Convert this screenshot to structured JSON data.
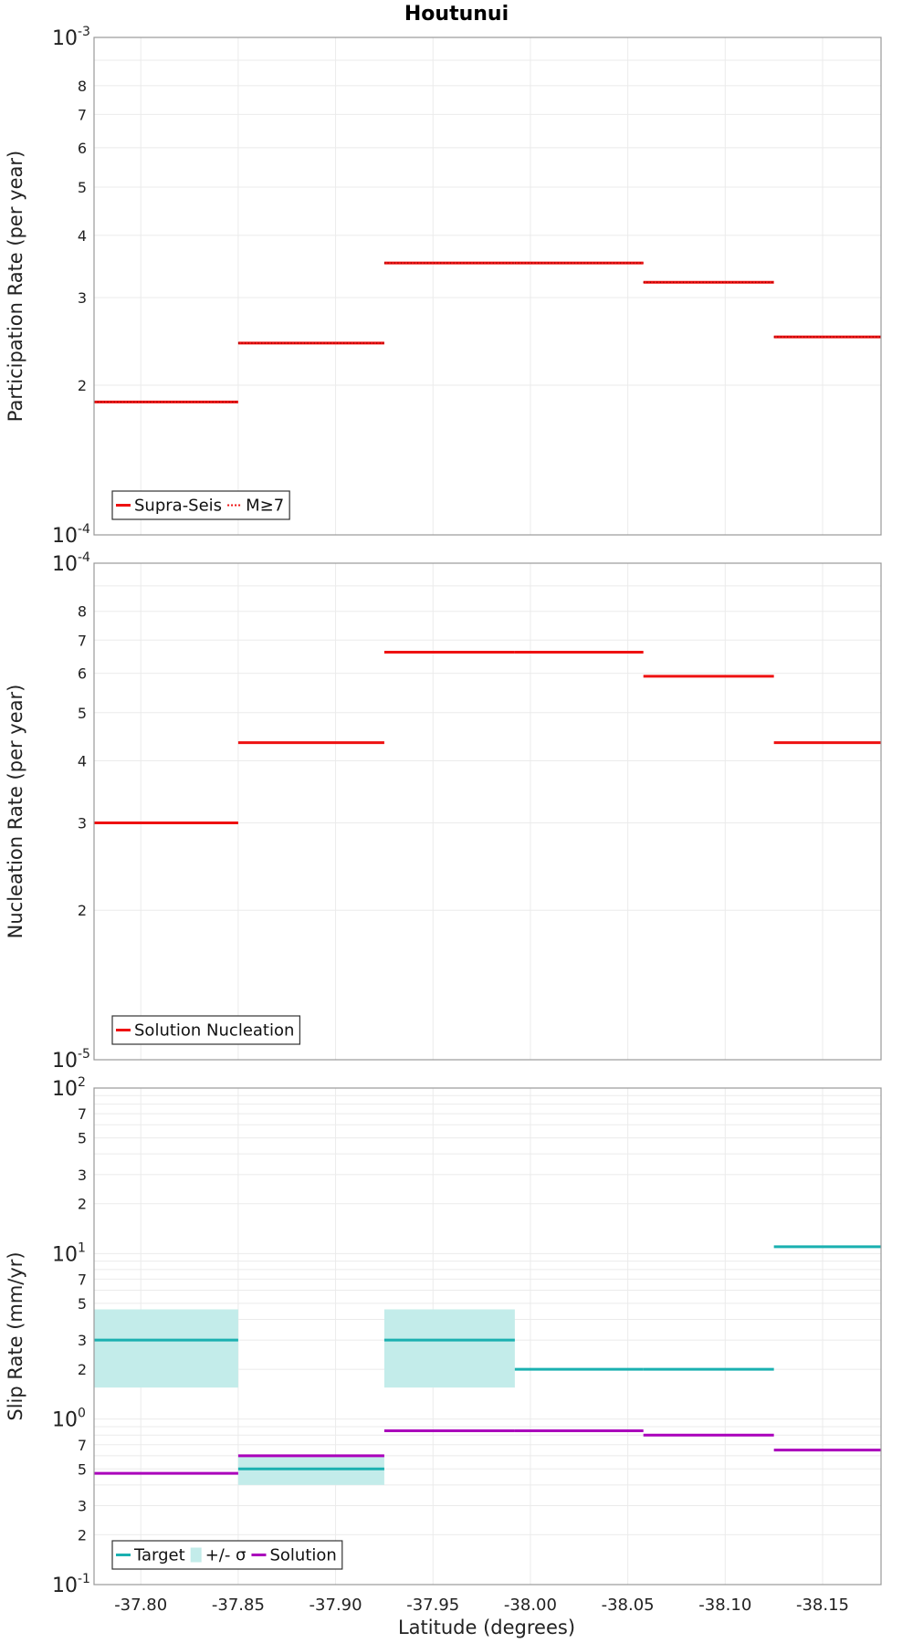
{
  "chart_data": [
    {
      "type": "line",
      "title": "Houtunui",
      "ylabel": "Participation Rate (per year)",
      "yscale": "log",
      "ylim": [
        0.0001,
        0.001
      ],
      "y_major_labels": [
        {
          "value": 0.001,
          "base": "10",
          "exp": "-3"
        },
        {
          "value": 0.0001,
          "base": "10",
          "exp": "-4"
        }
      ],
      "y_minor_labels": [
        {
          "value": 0.0008,
          "label": "8"
        },
        {
          "value": 0.0007,
          "label": "7"
        },
        {
          "value": 0.0006,
          "label": "6"
        },
        {
          "value": 0.0005,
          "label": "5"
        },
        {
          "value": 0.0004,
          "label": "4"
        },
        {
          "value": 0.0003,
          "label": "3"
        },
        {
          "value": 0.0002,
          "label": "2"
        }
      ],
      "legend": {
        "placement": "bottom-left",
        "entries": [
          {
            "label": "Supra-Seis",
            "style": "solid",
            "color": "#ee1111"
          },
          {
            "label": "M≥7",
            "style": "dotted",
            "color": "#ee1111"
          }
        ]
      },
      "series": [
        {
          "name": "Supra-Seis",
          "color": "#ee1111",
          "segments": [
            {
              "x0": -37.776,
              "x1": -37.85,
              "y": 0.000185
            },
            {
              "x0": -37.85,
              "x1": -37.925,
              "y": 0.000243
            },
            {
              "x0": -37.925,
              "x1": -37.992,
              "y": 0.000352
            },
            {
              "x0": -37.992,
              "x1": -38.058,
              "y": 0.000352
            },
            {
              "x0": -38.058,
              "x1": -38.125,
              "y": 0.000322
            },
            {
              "x0": -38.125,
              "x1": -38.18,
              "y": 0.00025
            }
          ]
        },
        {
          "name": "M≥7",
          "color": "#ee1111",
          "dotted": true,
          "segments": [
            {
              "x0": -37.776,
              "x1": -37.85,
              "y": 0.000185
            },
            {
              "x0": -37.85,
              "x1": -37.925,
              "y": 0.000243
            },
            {
              "x0": -37.925,
              "x1": -37.992,
              "y": 0.000352
            },
            {
              "x0": -37.992,
              "x1": -38.058,
              "y": 0.000352
            },
            {
              "x0": -38.058,
              "x1": -38.125,
              "y": 0.000322
            },
            {
              "x0": -38.125,
              "x1": -38.18,
              "y": 0.00025
            }
          ]
        }
      ]
    },
    {
      "type": "line",
      "ylabel": "Nucleation Rate (per year)",
      "yscale": "log",
      "ylim": [
        1e-05,
        0.0001
      ],
      "y_major_labels": [
        {
          "value": 0.0001,
          "base": "10",
          "exp": "-4"
        },
        {
          "value": 1e-05,
          "base": "10",
          "exp": "-5"
        }
      ],
      "y_minor_labels": [
        {
          "value": 8e-05,
          "label": "8"
        },
        {
          "value": 7e-05,
          "label": "7"
        },
        {
          "value": 6e-05,
          "label": "6"
        },
        {
          "value": 5e-05,
          "label": "5"
        },
        {
          "value": 4e-05,
          "label": "4"
        },
        {
          "value": 3e-05,
          "label": "3"
        },
        {
          "value": 2e-05,
          "label": "2"
        }
      ],
      "legend": {
        "placement": "bottom-left",
        "entries": [
          {
            "label": "Solution Nucleation",
            "style": "solid",
            "color": "#ee1111"
          }
        ]
      },
      "series": [
        {
          "name": "Solution Nucleation",
          "color": "#ee1111",
          "segments": [
            {
              "x0": -37.776,
              "x1": -37.85,
              "y": 3e-05
            },
            {
              "x0": -37.85,
              "x1": -37.925,
              "y": 4.35e-05
            },
            {
              "x0": -37.925,
              "x1": -37.992,
              "y": 6.62e-05
            },
            {
              "x0": -37.992,
              "x1": -38.058,
              "y": 6.62e-05
            },
            {
              "x0": -38.058,
              "x1": -38.125,
              "y": 5.92e-05
            },
            {
              "x0": -38.125,
              "x1": -38.18,
              "y": 4.35e-05
            }
          ]
        }
      ]
    },
    {
      "type": "line",
      "ylabel": "Slip Rate (mm/yr)",
      "xlabel": "Latitude (degrees)",
      "yscale": "log",
      "ylim": [
        0.1,
        100
      ],
      "xlim": [
        -37.776,
        -38.18
      ],
      "x_ticks": [
        {
          "value": -37.8,
          "label": "-37.80"
        },
        {
          "value": -37.85,
          "label": "-37.85"
        },
        {
          "value": -37.9,
          "label": "-37.90"
        },
        {
          "value": -37.95,
          "label": "-37.95"
        },
        {
          "value": -38.0,
          "label": "-38.00"
        },
        {
          "value": -38.05,
          "label": "-38.05"
        },
        {
          "value": -38.1,
          "label": "-38.10"
        },
        {
          "value": -38.15,
          "label": "-38.15"
        }
      ],
      "y_major_labels": [
        {
          "value": 100,
          "base": "10",
          "exp": "2"
        },
        {
          "value": 10,
          "base": "10",
          "exp": "1"
        },
        {
          "value": 1,
          "base": "10",
          "exp": "0"
        },
        {
          "value": 0.1,
          "base": "10",
          "exp": "-1"
        }
      ],
      "y_minor_labels": [
        {
          "value": 70,
          "label": "7"
        },
        {
          "value": 50,
          "label": "5"
        },
        {
          "value": 30,
          "label": "3"
        },
        {
          "value": 20,
          "label": "2"
        },
        {
          "value": 7,
          "label": "7"
        },
        {
          "value": 5,
          "label": "5"
        },
        {
          "value": 3,
          "label": "3"
        },
        {
          "value": 2,
          "label": "2"
        },
        {
          "value": 0.7,
          "label": "7"
        },
        {
          "value": 0.5,
          "label": "5"
        },
        {
          "value": 0.3,
          "label": "3"
        },
        {
          "value": 0.2,
          "label": "2"
        }
      ],
      "legend": {
        "placement": "bottom-left",
        "entries": [
          {
            "label": "Target",
            "style": "solid",
            "color": "#1ab0b0"
          },
          {
            "label": "+/- σ",
            "style": "box",
            "color": "#c3ecea"
          },
          {
            "label": "Solution",
            "style": "solid",
            "color": "#aa00bb"
          }
        ]
      },
      "bands": [
        {
          "name": "+/- σ",
          "color": "#c3ecea",
          "x0": -37.776,
          "x1": -37.85,
          "y_low": 1.55,
          "y_high": 4.6
        },
        {
          "name": "+/- σ",
          "color": "#c3ecea",
          "x0": -37.85,
          "x1": -37.925,
          "y_low": 0.4,
          "y_high": 0.6
        },
        {
          "name": "+/- σ",
          "color": "#c3ecea",
          "x0": -37.925,
          "x1": -37.992,
          "y_low": 1.55,
          "y_high": 4.6
        }
      ],
      "series": [
        {
          "name": "Target",
          "color": "#1ab0b0",
          "segments": [
            {
              "x0": -37.776,
              "x1": -37.85,
              "y": 3.0
            },
            {
              "x0": -37.85,
              "x1": -37.925,
              "y": 0.5
            },
            {
              "x0": -37.925,
              "x1": -37.992,
              "y": 3.0
            },
            {
              "x0": -37.992,
              "x1": -38.058,
              "y": 2.0
            },
            {
              "x0": -38.058,
              "x1": -38.125,
              "y": 2.0
            },
            {
              "x0": -38.125,
              "x1": -38.18,
              "y": 11.0
            }
          ]
        },
        {
          "name": "Solution",
          "color": "#aa00bb",
          "segments": [
            {
              "x0": -37.776,
              "x1": -37.85,
              "y": 0.47
            },
            {
              "x0": -37.85,
              "x1": -37.925,
              "y": 0.6
            },
            {
              "x0": -37.925,
              "x1": -37.992,
              "y": 0.85
            },
            {
              "x0": -37.992,
              "x1": -38.058,
              "y": 0.85
            },
            {
              "x0": -38.058,
              "x1": -38.125,
              "y": 0.8
            },
            {
              "x0": -38.125,
              "x1": -38.18,
              "y": 0.65
            }
          ]
        }
      ]
    }
  ]
}
